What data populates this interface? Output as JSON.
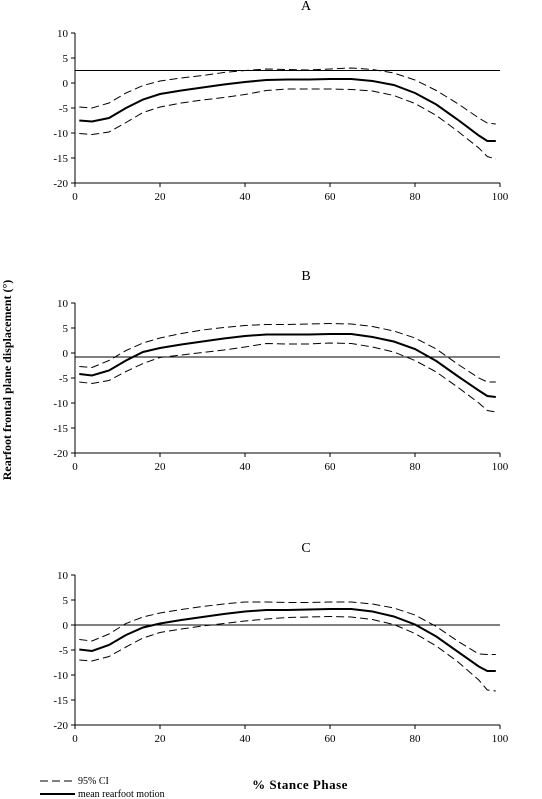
{
  "figure": {
    "ylabel": "Rearfoot frontal plane displacement (°)",
    "xlabel": "% Stance Phase",
    "legend": [
      {
        "label": "95% CI",
        "style": "dashed"
      },
      {
        "label": "mean rearfoot motion",
        "style": "solid"
      }
    ]
  },
  "chart_data": [
    {
      "type": "line",
      "title": "A",
      "xlim": [
        0,
        100
      ],
      "ylim": [
        -20,
        10
      ],
      "xticks": [
        0,
        20,
        40,
        60,
        80,
        100
      ],
      "yticks": [
        10,
        5,
        0,
        -5,
        -10,
        -15,
        -20
      ],
      "reference_line": 2.5,
      "x": [
        1,
        4,
        8,
        12,
        16,
        20,
        25,
        30,
        35,
        40,
        45,
        50,
        55,
        60,
        65,
        70,
        75,
        80,
        85,
        90,
        95,
        97,
        99
      ],
      "series": [
        {
          "name": "mean rearfoot motion",
          "style": "solid",
          "values": [
            -7.5,
            -7.7,
            -7.0,
            -5.0,
            -3.3,
            -2.2,
            -1.5,
            -0.9,
            -0.3,
            0.2,
            0.6,
            0.7,
            0.7,
            0.8,
            0.8,
            0.4,
            -0.4,
            -2.0,
            -4.3,
            -7.3,
            -10.5,
            -11.6,
            -11.6
          ]
        },
        {
          "name": "95% CI",
          "style": "dashed",
          "values": [
            -4.8,
            -5.0,
            -4.0,
            -2.0,
            -0.5,
            0.4,
            1.0,
            1.5,
            2.1,
            2.5,
            2.8,
            2.7,
            2.6,
            2.8,
            3.0,
            2.7,
            2.0,
            0.6,
            -1.5,
            -4.1,
            -7.0,
            -8.0,
            -8.2
          ]
        },
        {
          "name": "95% CI lower",
          "style": "dashed",
          "values": [
            -10.1,
            -10.3,
            -9.8,
            -7.9,
            -5.9,
            -4.8,
            -4.0,
            -3.4,
            -2.9,
            -2.3,
            -1.5,
            -1.2,
            -1.2,
            -1.2,
            -1.3,
            -1.6,
            -2.5,
            -4.1,
            -6.5,
            -9.6,
            -13.0,
            -14.7,
            -15.2
          ]
        }
      ]
    },
    {
      "type": "line",
      "title": "B",
      "xlim": [
        0,
        100
      ],
      "ylim": [
        -20,
        10
      ],
      "xticks": [
        0,
        20,
        40,
        60,
        80,
        100
      ],
      "yticks": [
        10,
        5,
        0,
        -5,
        -10,
        -15,
        -20
      ],
      "reference_line": -0.8,
      "x": [
        1,
        4,
        8,
        12,
        16,
        20,
        25,
        30,
        35,
        40,
        45,
        50,
        55,
        60,
        65,
        70,
        75,
        80,
        85,
        90,
        95,
        97,
        99
      ],
      "series": [
        {
          "name": "mean rearfoot motion",
          "style": "solid",
          "values": [
            -4.2,
            -4.5,
            -3.5,
            -1.5,
            0.2,
            1.0,
            1.7,
            2.3,
            2.9,
            3.4,
            3.7,
            3.7,
            3.7,
            3.8,
            3.8,
            3.2,
            2.3,
            0.8,
            -1.6,
            -4.6,
            -7.5,
            -8.6,
            -8.8
          ]
        },
        {
          "name": "95% CI",
          "style": "dashed",
          "values": [
            -2.7,
            -2.9,
            -1.5,
            0.5,
            2.0,
            3.0,
            3.9,
            4.6,
            5.1,
            5.5,
            5.7,
            5.7,
            5.8,
            5.9,
            5.8,
            5.3,
            4.4,
            3.0,
            0.8,
            -2.2,
            -5.0,
            -5.8,
            -5.8
          ]
        },
        {
          "name": "95% CI lower",
          "style": "dashed",
          "values": [
            -5.8,
            -6.1,
            -5.5,
            -3.7,
            -2.1,
            -0.9,
            -0.4,
            0.1,
            0.6,
            1.2,
            1.9,
            1.8,
            1.8,
            2.0,
            1.9,
            1.2,
            0.2,
            -1.5,
            -3.8,
            -6.8,
            -10.0,
            -11.5,
            -11.8
          ]
        }
      ]
    },
    {
      "type": "line",
      "title": "C",
      "xlim": [
        0,
        100
      ],
      "ylim": [
        -20,
        10
      ],
      "xticks": [
        0,
        20,
        40,
        60,
        80,
        100
      ],
      "yticks": [
        10,
        5,
        0,
        -5,
        -10,
        -15,
        -20
      ],
      "reference_line": 0,
      "x": [
        1,
        4,
        8,
        12,
        16,
        20,
        25,
        30,
        35,
        40,
        45,
        50,
        55,
        60,
        65,
        70,
        75,
        80,
        85,
        90,
        95,
        97,
        99
      ],
      "series": [
        {
          "name": "mean rearfoot motion",
          "style": "solid",
          "values": [
            -4.9,
            -5.2,
            -4.0,
            -2.0,
            -0.5,
            0.3,
            1.0,
            1.6,
            2.2,
            2.7,
            3.0,
            3.0,
            3.1,
            3.2,
            3.2,
            2.7,
            1.7,
            0.1,
            -2.3,
            -5.3,
            -8.3,
            -9.2,
            -9.2
          ]
        },
        {
          "name": "95% CI",
          "style": "dashed",
          "values": [
            -2.9,
            -3.2,
            -1.8,
            0.3,
            1.6,
            2.4,
            3.1,
            3.7,
            4.2,
            4.6,
            4.6,
            4.5,
            4.5,
            4.6,
            4.6,
            4.2,
            3.4,
            2.0,
            -0.3,
            -3.2,
            -5.8,
            -5.9,
            -5.9
          ]
        },
        {
          "name": "95% CI lower",
          "style": "dashed",
          "values": [
            -7.0,
            -7.2,
            -6.3,
            -4.4,
            -2.6,
            -1.5,
            -0.8,
            -0.2,
            0.3,
            0.8,
            1.2,
            1.5,
            1.6,
            1.7,
            1.6,
            1.1,
            0.1,
            -1.7,
            -4.2,
            -7.3,
            -11.0,
            -13.0,
            -13.2
          ]
        }
      ]
    }
  ]
}
